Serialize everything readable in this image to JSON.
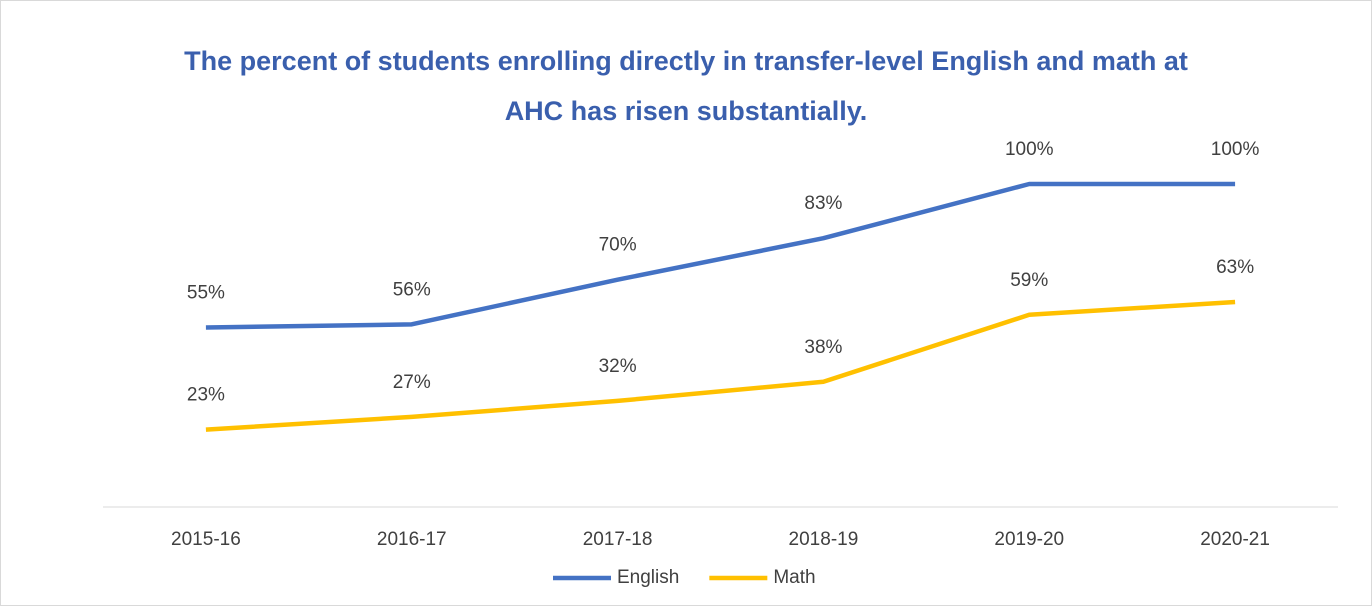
{
  "chart_data": {
    "type": "line",
    "title": "The percent of students enrolling directly in transfer-level English and math at AHC has risen substantially.",
    "categories": [
      "2015-16",
      "2016-17",
      "2017-18",
      "2018-19",
      "2019-20",
      "2020-21"
    ],
    "series": [
      {
        "name": "English",
        "color": "#4472c4",
        "values": [
          55,
          56,
          70,
          83,
          100,
          100
        ],
        "value_labels": [
          "55%",
          "56%",
          "70%",
          "83%",
          "100%",
          "100%"
        ]
      },
      {
        "name": "Math",
        "color": "#ffc000",
        "values": [
          23,
          27,
          32,
          38,
          59,
          63
        ],
        "value_labels": [
          "23%",
          "27%",
          "32%",
          "38%",
          "59%",
          "63%"
        ]
      }
    ],
    "ylim": [
      0,
      100
    ],
    "legend": "bottom"
  }
}
